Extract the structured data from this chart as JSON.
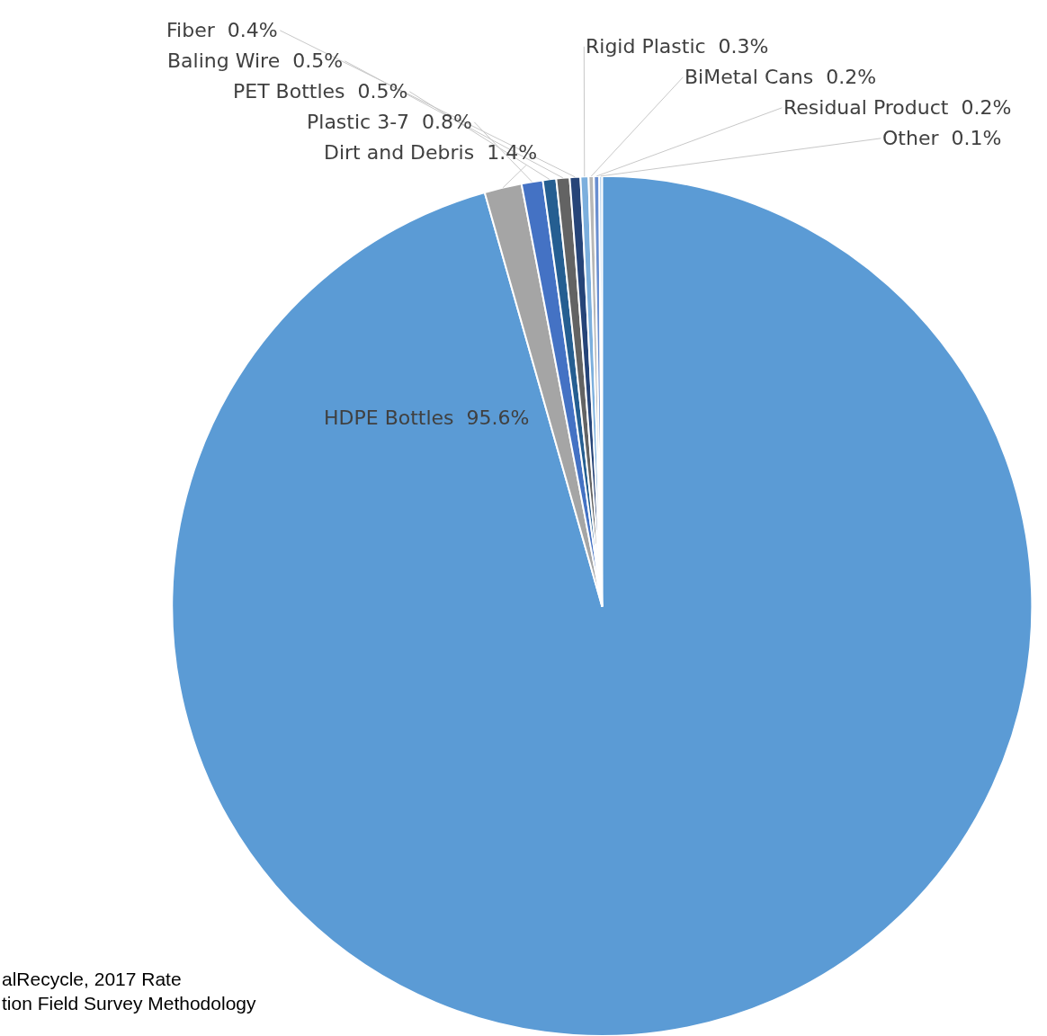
{
  "chart_data": {
    "type": "pie",
    "categories": [
      "HDPE Bottles",
      "Dirt and Debris",
      "Plastic 3-7",
      "PET Bottles",
      "Baling Wire",
      "Fiber",
      "Rigid Plastic",
      "BiMetal Cans",
      "Residual Product",
      "Other"
    ],
    "values": [
      95.6,
      1.4,
      0.8,
      0.5,
      0.5,
      0.4,
      0.3,
      0.2,
      0.2,
      0.1
    ],
    "value_labels": [
      "95.6%",
      "1.4%",
      "0.8%",
      "0.5%",
      "0.5%",
      "0.4%",
      "0.3%",
      "0.2%",
      "0.2%",
      "0.1%"
    ],
    "colors": [
      "#5b9bd5",
      "#a5a5a5",
      "#4472c4",
      "#255e91",
      "#636363",
      "#264478",
      "#7cafdd",
      "#b7b7b7",
      "#698ed0",
      "#9dc3e6"
    ],
    "annotations": [
      "alRecycle, 2017 Rate\ntion Field Survey Methodology"
    ]
  }
}
